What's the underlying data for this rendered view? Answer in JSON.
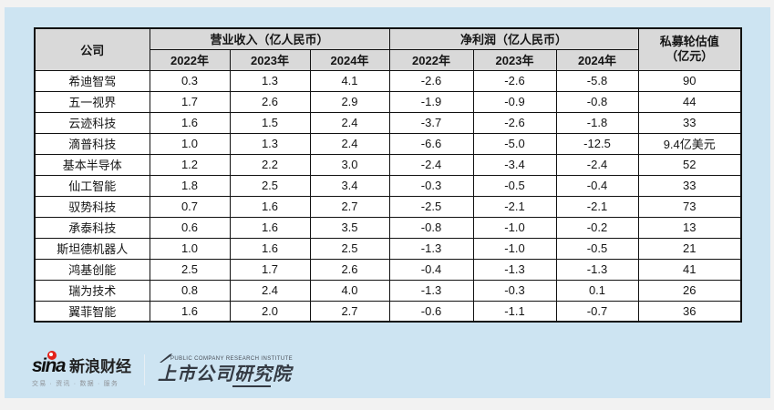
{
  "table": {
    "col_company": "公司",
    "group_revenue": "营业收入（亿人民币）",
    "group_profit": "净利润（亿人民币）",
    "valuation_line1": "私募轮估值",
    "valuation_line2": "（亿元）",
    "year_headers": [
      "2022年",
      "2023年",
      "2024年"
    ],
    "rows": [
      {
        "company": "希迪智驾",
        "revenue": [
          "0.3",
          "1.3",
          "4.1"
        ],
        "profit": [
          "-2.6",
          "-2.6",
          "-5.8"
        ],
        "valuation": "90"
      },
      {
        "company": "五一视界",
        "revenue": [
          "1.7",
          "2.6",
          "2.9"
        ],
        "profit": [
          "-1.9",
          "-0.9",
          "-0.8"
        ],
        "valuation": "44"
      },
      {
        "company": "云迹科技",
        "revenue": [
          "1.6",
          "1.5",
          "2.4"
        ],
        "profit": [
          "-3.7",
          "-2.6",
          "-1.8"
        ],
        "valuation": "33"
      },
      {
        "company": "滴普科技",
        "revenue": [
          "1.0",
          "1.3",
          "2.4"
        ],
        "profit": [
          "-6.6",
          "-5.0",
          "-12.5"
        ],
        "valuation": "9.4亿美元"
      },
      {
        "company": "基本半导体",
        "revenue": [
          "1.2",
          "2.2",
          "3.0"
        ],
        "profit": [
          "-2.4",
          "-3.4",
          "-2.4"
        ],
        "valuation": "52"
      },
      {
        "company": "仙工智能",
        "revenue": [
          "1.8",
          "2.5",
          "3.4"
        ],
        "profit": [
          "-0.3",
          "-0.5",
          "-0.4"
        ],
        "valuation": "33"
      },
      {
        "company": "驭势科技",
        "revenue": [
          "0.7",
          "1.6",
          "2.7"
        ],
        "profit": [
          "-2.5",
          "-2.1",
          "-2.1"
        ],
        "valuation": "73"
      },
      {
        "company": "承泰科技",
        "revenue": [
          "0.6",
          "1.6",
          "3.5"
        ],
        "profit": [
          "-0.8",
          "-1.0",
          "-0.2"
        ],
        "valuation": "13"
      },
      {
        "company": "斯坦德机器人",
        "revenue": [
          "1.0",
          "1.6",
          "2.5"
        ],
        "profit": [
          "-1.3",
          "-1.0",
          "-0.5"
        ],
        "valuation": "21"
      },
      {
        "company": "鸿基创能",
        "revenue": [
          "2.5",
          "1.7",
          "2.6"
        ],
        "profit": [
          "-0.4",
          "-1.3",
          "-1.3"
        ],
        "valuation": "41"
      },
      {
        "company": "瑞为技术",
        "revenue": [
          "0.8",
          "2.4",
          "4.0"
        ],
        "profit": [
          "-1.3",
          "-0.3",
          "0.1"
        ],
        "valuation": "26"
      },
      {
        "company": "翼菲智能",
        "revenue": [
          "1.6",
          "2.0",
          "2.7"
        ],
        "profit": [
          "-0.6",
          "-1.1",
          "-0.7"
        ],
        "valuation": "36"
      }
    ]
  },
  "chart_data": {
    "type": "table",
    "title": "",
    "columns": [
      "公司",
      "营业收入2022年(亿人民币)",
      "营业收入2023年(亿人民币)",
      "营业收入2024年(亿人民币)",
      "净利润2022年(亿人民币)",
      "净利润2023年(亿人民币)",
      "净利润2024年(亿人民币)",
      "私募轮估值(亿元)"
    ],
    "rows": [
      [
        "希迪智驾",
        0.3,
        1.3,
        4.1,
        -2.6,
        -2.6,
        -5.8,
        "90"
      ],
      [
        "五一视界",
        1.7,
        2.6,
        2.9,
        -1.9,
        -0.9,
        -0.8,
        "44"
      ],
      [
        "云迹科技",
        1.6,
        1.5,
        2.4,
        -3.7,
        -2.6,
        -1.8,
        "33"
      ],
      [
        "滴普科技",
        1.0,
        1.3,
        2.4,
        -6.6,
        -5.0,
        -12.5,
        "9.4亿美元"
      ],
      [
        "基本半导体",
        1.2,
        2.2,
        3.0,
        -2.4,
        -3.4,
        -2.4,
        "52"
      ],
      [
        "仙工智能",
        1.8,
        2.5,
        3.4,
        -0.3,
        -0.5,
        -0.4,
        "33"
      ],
      [
        "驭势科技",
        0.7,
        1.6,
        2.7,
        -2.5,
        -2.1,
        -2.1,
        "73"
      ],
      [
        "承泰科技",
        0.6,
        1.6,
        3.5,
        -0.8,
        -1.0,
        -0.2,
        "13"
      ],
      [
        "斯坦德机器人",
        1.0,
        1.6,
        2.5,
        -1.3,
        -1.0,
        -0.5,
        "21"
      ],
      [
        "鸿基创能",
        2.5,
        1.7,
        2.6,
        -0.4,
        -1.3,
        -1.3,
        "41"
      ],
      [
        "瑞为技术",
        0.8,
        2.4,
        4.0,
        -1.3,
        -0.3,
        0.1,
        "26"
      ],
      [
        "翼菲智能",
        1.6,
        2.0,
        2.7,
        -0.6,
        -1.1,
        -0.7,
        "36"
      ]
    ]
  },
  "footer": {
    "sina_word": "sina",
    "sina_brand": "新浪财经",
    "sina_tagline": "交易 · 资讯 · 数据 · 服务",
    "institute_caption": "PUBLIC COMPANY RESEARCH INSTITUTE",
    "institute_name": "上市公司研究院"
  },
  "colors": {
    "canvas_bg": "#cde4f2",
    "header_bg": "#d9d9d9",
    "table_border": "#111111",
    "sina_red": "#e32119"
  }
}
